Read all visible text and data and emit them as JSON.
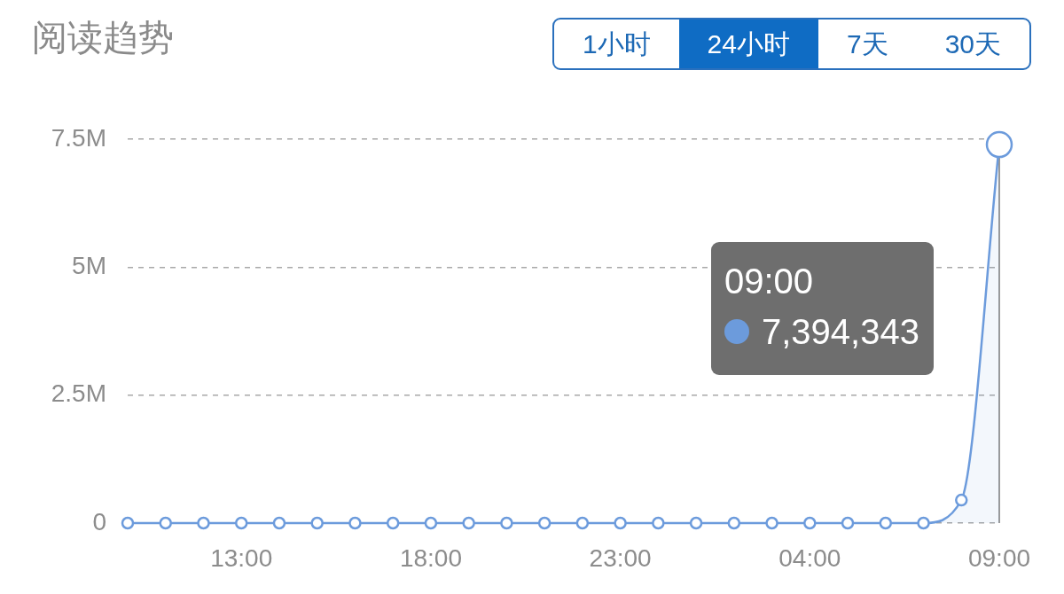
{
  "chart_data": {
    "type": "area",
    "title": "阅读趋势",
    "categories": [
      null,
      null,
      null,
      "13:00",
      null,
      null,
      null,
      null,
      "18:00",
      null,
      null,
      null,
      null,
      "23:00",
      null,
      null,
      null,
      null,
      "04:00",
      null,
      null,
      null,
      null,
      "09:00"
    ],
    "values": [
      0,
      0,
      0,
      0,
      0,
      0,
      0,
      0,
      0,
      0,
      0,
      0,
      0,
      0,
      0,
      0,
      0,
      0,
      0,
      0,
      0,
      0,
      450000,
      7394343
    ],
    "color": "#6c9bdc",
    "ylim": [
      0,
      7500000
    ],
    "yticks": [
      0,
      {
        "value": 2500000,
        "label": "2.5M"
      },
      {
        "value": 5000000,
        "label": "5M"
      },
      {
        "value": 7500000,
        "label": "7.5M"
      }
    ],
    "grid": "y",
    "marker": "circle",
    "annotations": [
      "1小时",
      "24小时",
      "7天",
      "30天",
      "7,394,343"
    ]
  }
}
